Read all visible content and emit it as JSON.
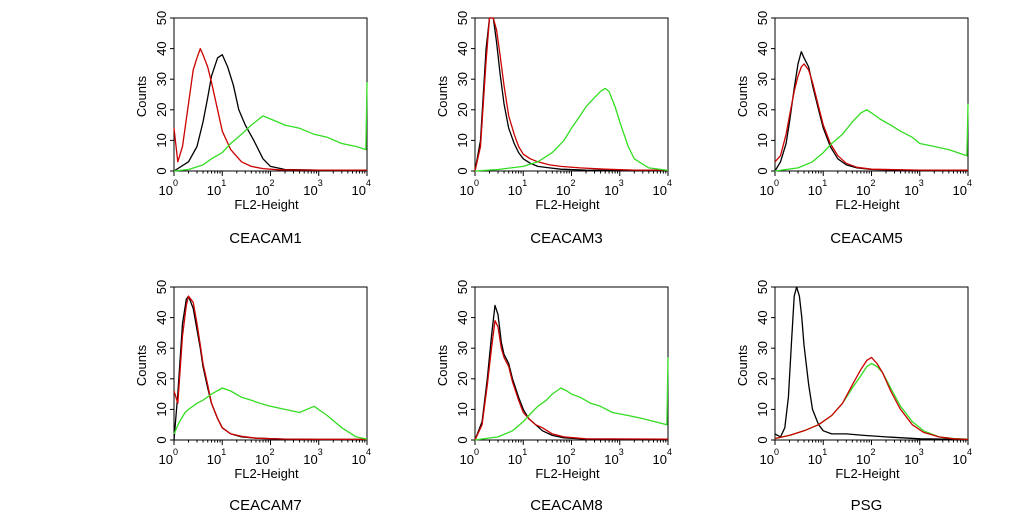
{
  "colors": {
    "control": "#000000",
    "antibody_a": "#cc0000",
    "antibody_b": "#33dd22"
  },
  "chart_data": [
    {
      "type": "line",
      "title": "CEACAM1",
      "xlabel": "FL2-Height",
      "ylabel": "Counts",
      "xscale": "log",
      "xlim": [
        1,
        10000
      ],
      "ylim": [
        0,
        50
      ],
      "xticks": [
        "10",
        "10",
        "10",
        "10",
        "10"
      ],
      "xtick_exponents": [
        "0",
        "1",
        "2",
        "3",
        "4"
      ],
      "yticks": [
        "0",
        "10",
        "20",
        "30",
        "40",
        "50"
      ],
      "series": [
        {
          "color": "#000000",
          "x": [
            1,
            2,
            3,
            4,
            5,
            6,
            8,
            10,
            13,
            17,
            22,
            30,
            45,
            70,
            100,
            200,
            1000,
            10000
          ],
          "y": [
            0,
            3,
            8,
            16,
            24,
            31,
            37,
            38,
            34,
            28,
            20,
            15,
            10,
            4,
            1.5,
            0.5,
            0.3,
            0.2
          ]
        },
        {
          "color": "#cc0000",
          "x": [
            1,
            1.2,
            1.5,
            2,
            2.5,
            3,
            3.5,
            4,
            5,
            6,
            8,
            10,
            15,
            25,
            40,
            70,
            150,
            1000,
            10000
          ],
          "y": [
            14,
            3,
            8,
            22,
            33,
            37,
            40,
            38,
            34,
            29,
            20,
            13,
            7,
            3,
            1.5,
            0.8,
            0.4,
            0.3,
            0.3
          ]
        },
        {
          "color": "#33dd22",
          "x": [
            1,
            2,
            4,
            6,
            10,
            15,
            25,
            40,
            70,
            100,
            200,
            400,
            800,
            1500,
            3000,
            6000,
            9500,
            10000
          ],
          "y": [
            0,
            0.5,
            2,
            4,
            6,
            9,
            12,
            15,
            18,
            17,
            15,
            14,
            12,
            11,
            9,
            8,
            7,
            29
          ]
        }
      ]
    },
    {
      "type": "line",
      "title": "CEACAM3",
      "xlabel": "FL2-Height",
      "ylabel": "Counts",
      "xscale": "log",
      "xlim": [
        1,
        10000
      ],
      "ylim": [
        0,
        50
      ],
      "xticks": [
        "10",
        "10",
        "10",
        "10",
        "10"
      ],
      "xtick_exponents": [
        "0",
        "1",
        "2",
        "3",
        "4"
      ],
      "yticks": [
        "0",
        "10",
        "20",
        "30",
        "40",
        "50"
      ],
      "series": [
        {
          "color": "#000000",
          "x": [
            1,
            1.3,
            1.7,
            2,
            2.4,
            2.8,
            3.3,
            4,
            5,
            6.5,
            8,
            10,
            14,
            20,
            35,
            60,
            200,
            1000,
            10000
          ],
          "y": [
            0,
            10,
            40,
            50,
            50,
            42,
            32,
            22,
            14,
            9,
            6,
            4,
            2.5,
            1.5,
            1,
            0.6,
            0.3,
            0.2,
            0.2
          ]
        },
        {
          "color": "#cc0000",
          "x": [
            1,
            1.3,
            1.7,
            2,
            2.4,
            2.8,
            3.3,
            4,
            5,
            6.5,
            8,
            10,
            14,
            20,
            35,
            60,
            150,
            500,
            2000,
            10000
          ],
          "y": [
            0,
            8,
            36,
            50,
            50,
            46,
            38,
            28,
            18,
            12,
            8,
            5.5,
            4,
            3,
            2,
            1.5,
            1,
            0.6,
            0.3,
            0.3
          ]
        },
        {
          "color": "#33dd22",
          "x": [
            1,
            3,
            10,
            20,
            40,
            70,
            100,
            150,
            200,
            300,
            400,
            500,
            600,
            800,
            1000,
            1500,
            2000,
            4000,
            10000
          ],
          "y": [
            0,
            0.5,
            1.5,
            3,
            6,
            10,
            14,
            18,
            21,
            24,
            26,
            27,
            26,
            21,
            16,
            8,
            4,
            1,
            0.2
          ]
        }
      ]
    },
    {
      "type": "line",
      "title": "CEACAM5",
      "xlabel": "FL2-Height",
      "ylabel": "Counts",
      "xscale": "log",
      "xlim": [
        1,
        10000
      ],
      "ylim": [
        0,
        50
      ],
      "xticks": [
        "10",
        "10",
        "10",
        "10",
        "10"
      ],
      "xtick_exponents": [
        "0",
        "1",
        "2",
        "3",
        "4"
      ],
      "yticks": [
        "0",
        "10",
        "20",
        "30",
        "40",
        "50"
      ],
      "series": [
        {
          "color": "#000000",
          "x": [
            1,
            1.3,
            1.7,
            2,
            2.5,
            3,
            3.5,
            4,
            5,
            6,
            8,
            10,
            14,
            20,
            30,
            50,
            100,
            1000,
            10000
          ],
          "y": [
            0,
            3,
            9,
            16,
            27,
            35,
            39,
            37,
            34,
            28,
            20,
            14,
            8,
            4,
            2,
            1,
            0.5,
            0.2,
            0.2
          ]
        },
        {
          "color": "#cc0000",
          "x": [
            1,
            1.3,
            1.7,
            2,
            2.5,
            3,
            3.5,
            4,
            5,
            6,
            8,
            10,
            14,
            20,
            30,
            50,
            100,
            1000,
            10000
          ],
          "y": [
            3,
            5,
            12,
            18,
            26,
            31,
            34,
            35,
            33,
            29,
            21,
            15,
            9,
            5,
            2.5,
            1.2,
            0.6,
            0.3,
            0.3
          ]
        },
        {
          "color": "#33dd22",
          "x": [
            1,
            3,
            6,
            10,
            15,
            25,
            40,
            60,
            80,
            100,
            150,
            250,
            400,
            700,
            1000,
            2000,
            4000,
            9500,
            10000
          ],
          "y": [
            0,
            1,
            3,
            6,
            9,
            12,
            16,
            19,
            20,
            19,
            17,
            15,
            13,
            11,
            9,
            8,
            7,
            5,
            22
          ]
        }
      ]
    },
    {
      "type": "line",
      "title": "CEACAM7",
      "xlabel": "FL2-Height",
      "ylabel": "Counts",
      "xscale": "log",
      "xlim": [
        1,
        10000
      ],
      "ylim": [
        0,
        50
      ],
      "xticks": [
        "10",
        "10",
        "10",
        "10",
        "10"
      ],
      "xtick_exponents": [
        "0",
        "1",
        "2",
        "3",
        "4"
      ],
      "yticks": [
        "0",
        "10",
        "20",
        "30",
        "40",
        "50"
      ],
      "series": [
        {
          "color": "#000000",
          "x": [
            1,
            1.2,
            1.5,
            1.8,
            2,
            2.5,
            3,
            3.5,
            4,
            5,
            6,
            8,
            10,
            15,
            25,
            50,
            200,
            1000,
            10000
          ],
          "y": [
            0,
            15,
            38,
            46,
            47,
            43,
            36,
            30,
            24,
            17,
            12,
            7,
            4,
            2,
            1,
            0.6,
            0.3,
            0.2,
            0.2
          ]
        },
        {
          "color": "#cc0000",
          "x": [
            1,
            1.2,
            1.5,
            1.8,
            2,
            2.5,
            3,
            3.5,
            4,
            5,
            6,
            8,
            10,
            15,
            25,
            50,
            200,
            1000,
            10000
          ],
          "y": [
            16,
            12,
            34,
            44,
            47,
            45,
            38,
            31,
            25,
            18,
            12,
            7,
            4,
            2,
            1.2,
            0.6,
            0.3,
            0.2,
            0.2
          ]
        },
        {
          "color": "#33dd22",
          "x": [
            1,
            1.3,
            1.7,
            2,
            3,
            4,
            6,
            10,
            15,
            25,
            40,
            60,
            100,
            200,
            400,
            800,
            1500,
            3000,
            6000,
            10000
          ],
          "y": [
            2,
            6,
            9,
            10,
            12,
            13,
            15,
            17,
            16,
            14,
            13,
            12,
            11,
            10,
            9,
            11,
            8,
            4,
            1,
            0.3
          ]
        }
      ]
    },
    {
      "type": "line",
      "title": "CEACAM8",
      "xlabel": "FL2-Height",
      "ylabel": "Counts",
      "xscale": "log",
      "xlim": [
        1,
        10000
      ],
      "ylim": [
        0,
        50
      ],
      "xticks": [
        "10",
        "10",
        "10",
        "10",
        "10"
      ],
      "xtick_exponents": [
        "0",
        "1",
        "2",
        "3",
        "4"
      ],
      "yticks": [
        "0",
        "10",
        "20",
        "30",
        "40",
        "50"
      ],
      "series": [
        {
          "color": "#000000",
          "x": [
            1,
            1.4,
            1.8,
            2.2,
            2.6,
            3,
            3.5,
            4,
            5,
            6,
            8,
            10,
            13,
            18,
            25,
            40,
            70,
            200,
            10000
          ],
          "y": [
            0,
            6,
            20,
            34,
            44,
            41,
            32,
            28,
            25,
            20,
            14,
            10,
            7,
            5,
            3,
            1.5,
            0.7,
            0.3,
            0.2
          ]
        },
        {
          "color": "#cc0000",
          "x": [
            1,
            1.4,
            1.8,
            2.2,
            2.6,
            3,
            3.5,
            4,
            5,
            6,
            8,
            10,
            13,
            18,
            25,
            40,
            70,
            200,
            10000
          ],
          "y": [
            0,
            5,
            18,
            30,
            39,
            37,
            30,
            27,
            24,
            19,
            13,
            9,
            7,
            5,
            4,
            2,
            1,
            0.4,
            0.3
          ]
        },
        {
          "color": "#33dd22",
          "x": [
            1,
            3,
            6,
            10,
            15,
            20,
            30,
            40,
            60,
            80,
            100,
            150,
            250,
            400,
            700,
            1500,
            3000,
            9500,
            10000
          ],
          "y": [
            0,
            1,
            3,
            6,
            9,
            11,
            13,
            15,
            17,
            16,
            15,
            14,
            12,
            11,
            9,
            8,
            7,
            5,
            27
          ]
        }
      ]
    },
    {
      "type": "line",
      "title": "PSG",
      "xlabel": "FL2-Height",
      "ylabel": "Counts",
      "xscale": "log",
      "xlim": [
        1,
        10000
      ],
      "ylim": [
        0,
        50
      ],
      "xticks": [
        "10",
        "10",
        "10",
        "10",
        "10"
      ],
      "xtick_exponents": [
        "0",
        "1",
        "2",
        "3",
        "4"
      ],
      "yticks": [
        "0",
        "10",
        "20",
        "30",
        "40",
        "50"
      ],
      "series": [
        {
          "color": "#000000",
          "x": [
            1,
            1.3,
            1.6,
            1.9,
            2.2,
            2.5,
            2.8,
            3.2,
            3.6,
            4,
            5,
            6,
            8,
            10,
            15,
            30,
            70,
            200,
            1000,
            10000
          ],
          "y": [
            2,
            1,
            4,
            14,
            32,
            47,
            50,
            47,
            40,
            31,
            18,
            10,
            5,
            3,
            2,
            2,
            1.5,
            1,
            0.4,
            0.2
          ]
        },
        {
          "color": "#33dd22",
          "x": [
            1,
            2,
            4,
            8,
            15,
            25,
            40,
            60,
            80,
            100,
            130,
            170,
            250,
            400,
            700,
            1200,
            2500,
            5000,
            10000
          ],
          "y": [
            0.5,
            1.5,
            3,
            5,
            8,
            12,
            17,
            21,
            24,
            25,
            24,
            22,
            17,
            11,
            6,
            3,
            1,
            0.5,
            0.3
          ]
        },
        {
          "color": "#cc0000",
          "x": [
            1,
            2,
            4,
            8,
            15,
            25,
            40,
            60,
            80,
            100,
            130,
            170,
            250,
            400,
            700,
            1200,
            2500,
            5000,
            10000
          ],
          "y": [
            0.5,
            1.5,
            3,
            5,
            8,
            12,
            18,
            23,
            26,
            27,
            25,
            22,
            16,
            10,
            5,
            2.5,
            1,
            0.4,
            0.2
          ]
        }
      ]
    }
  ]
}
